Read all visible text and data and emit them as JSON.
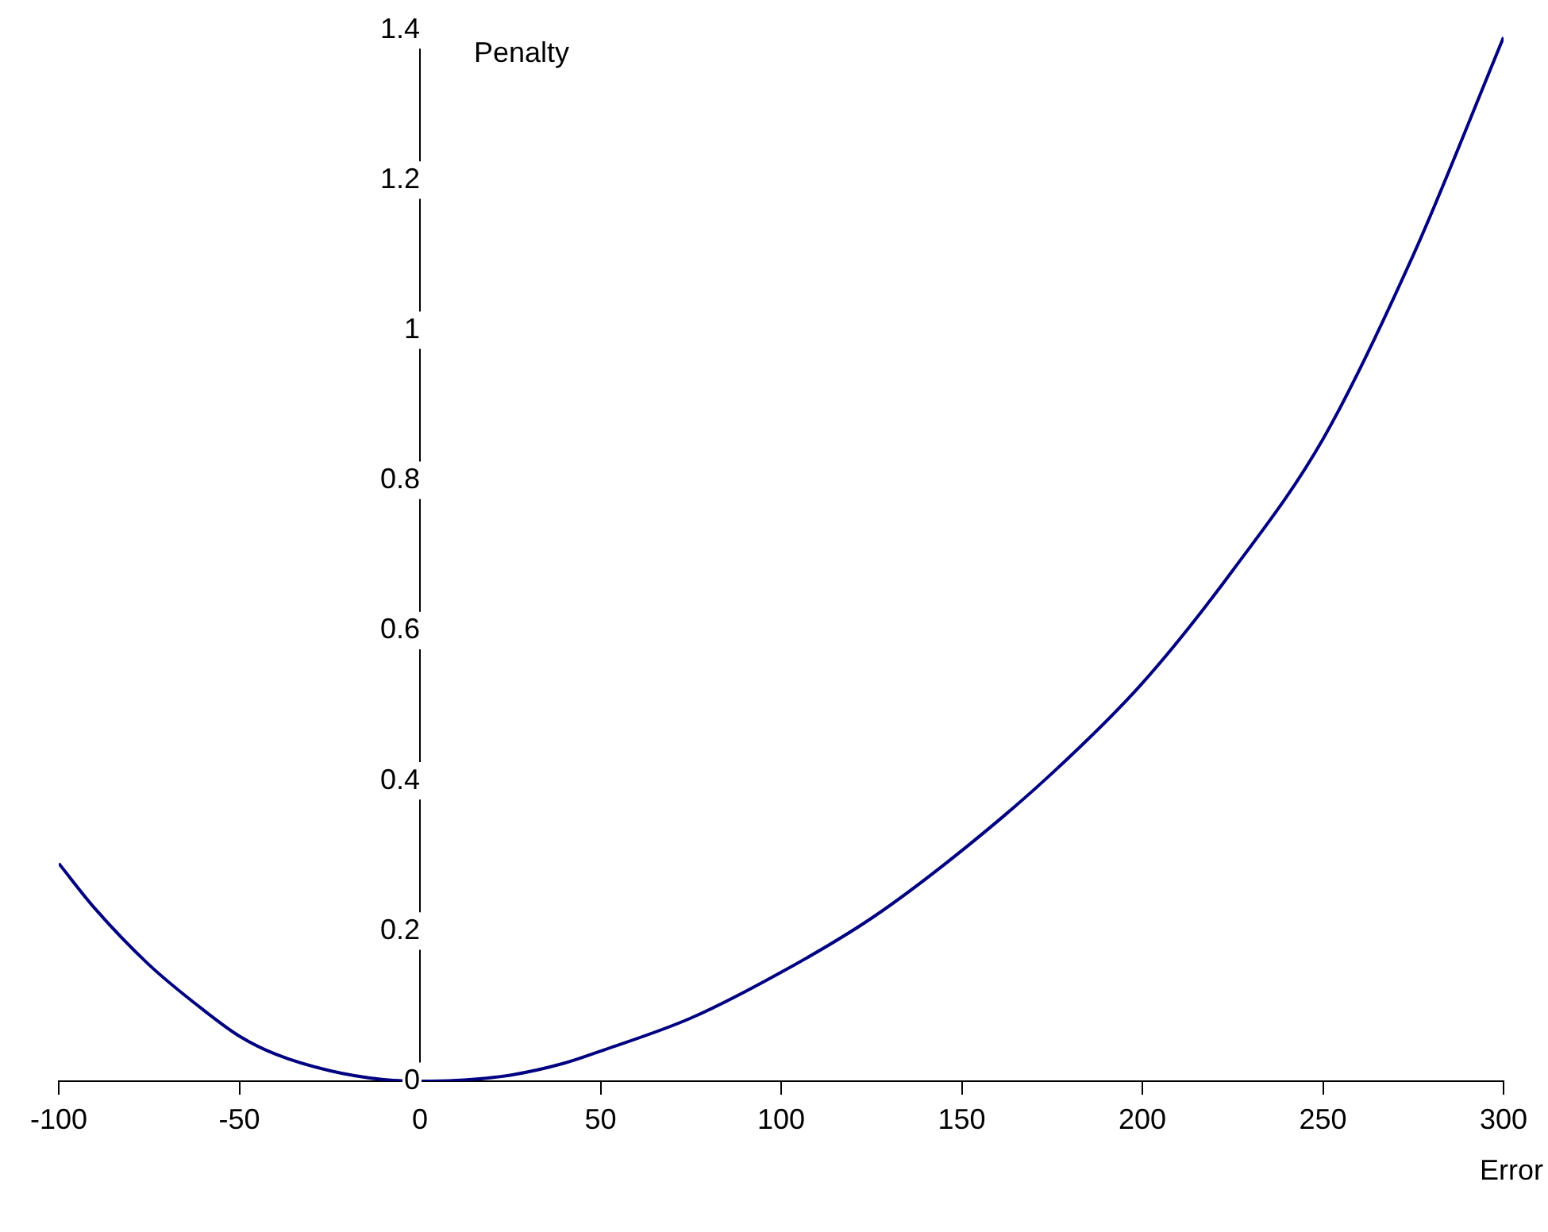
{
  "chart_data": {
    "type": "line",
    "xlabel": "Error",
    "ylabel": "Penalty",
    "x": [
      -100,
      -90,
      -75,
      -60,
      -50,
      -40,
      -25,
      -10,
      0,
      10,
      25,
      40,
      50,
      75,
      100,
      125,
      150,
      175,
      200,
      225,
      250,
      275,
      300
    ],
    "series": [
      {
        "color": "#000080",
        "values": [
          0.29,
          0.23,
          0.155,
          0.095,
          0.06,
          0.036,
          0.014,
          0.002,
          0,
          0.001,
          0.008,
          0.024,
          0.04,
          0.084,
          0.145,
          0.217,
          0.307,
          0.41,
          0.53,
          0.68,
          0.855,
          1.1,
          1.39
        ]
      }
    ],
    "xlim": [
      -100,
      300
    ],
    "xticks": [
      -100,
      -50,
      0,
      50,
      100,
      150,
      200,
      250,
      300
    ],
    "ylim": [
      0,
      1.4
    ],
    "yticks": [
      0,
      0.2,
      0.4,
      0.6,
      0.8,
      1,
      1.2,
      1.4
    ],
    "grid": false,
    "legend": false,
    "marker": "none",
    "line_style": "solid"
  }
}
